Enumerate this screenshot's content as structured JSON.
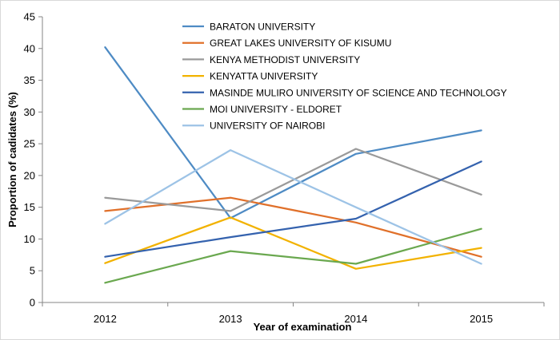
{
  "chart_data": {
    "type": "line",
    "x": [
      "2012",
      "2013",
      "2014",
      "2015"
    ],
    "xlabel": "Year of examination",
    "ylabel": "Proportion of cadidates (%)",
    "ylim": [
      0,
      45
    ],
    "yticks": [
      "0",
      "5",
      "10",
      "15",
      "20",
      "25",
      "30",
      "35",
      "40",
      "45"
    ],
    "grid": false,
    "legend_position": "top-right",
    "series": [
      {
        "name": "BARATON UNIVERSITY",
        "color": "#4e8bc4",
        "values": [
          40.2,
          13.3,
          23.4,
          27.1
        ]
      },
      {
        "name": "GREAT LAKES UNIVERSITY OF KISUMU",
        "color": "#e0702a",
        "values": [
          14.4,
          16.5,
          12.6,
          7.2
        ]
      },
      {
        "name": "KENYA METHODIST UNIVERSITY",
        "color": "#9a9a9a",
        "values": [
          16.5,
          14.4,
          24.2,
          17.0
        ]
      },
      {
        "name": "KENYATTA UNIVERSITY",
        "color": "#f2b200",
        "values": [
          6.2,
          13.4,
          5.3,
          8.6
        ]
      },
      {
        "name": "MASINDE MULIRO UNIVERSITY OF SCIENCE AND TECHNOLOGY",
        "color": "#3462ae",
        "values": [
          7.2,
          10.3,
          13.2,
          22.2
        ]
      },
      {
        "name": "MOI UNIVERSITY - ELDORET",
        "color": "#6aa84f",
        "values": [
          3.1,
          8.1,
          6.1,
          11.6
        ]
      },
      {
        "name": "UNIVERSITY OF NAIROBI",
        "color": "#9dc3e6",
        "values": [
          12.4,
          24.0,
          15.0,
          6.1
        ]
      }
    ]
  }
}
